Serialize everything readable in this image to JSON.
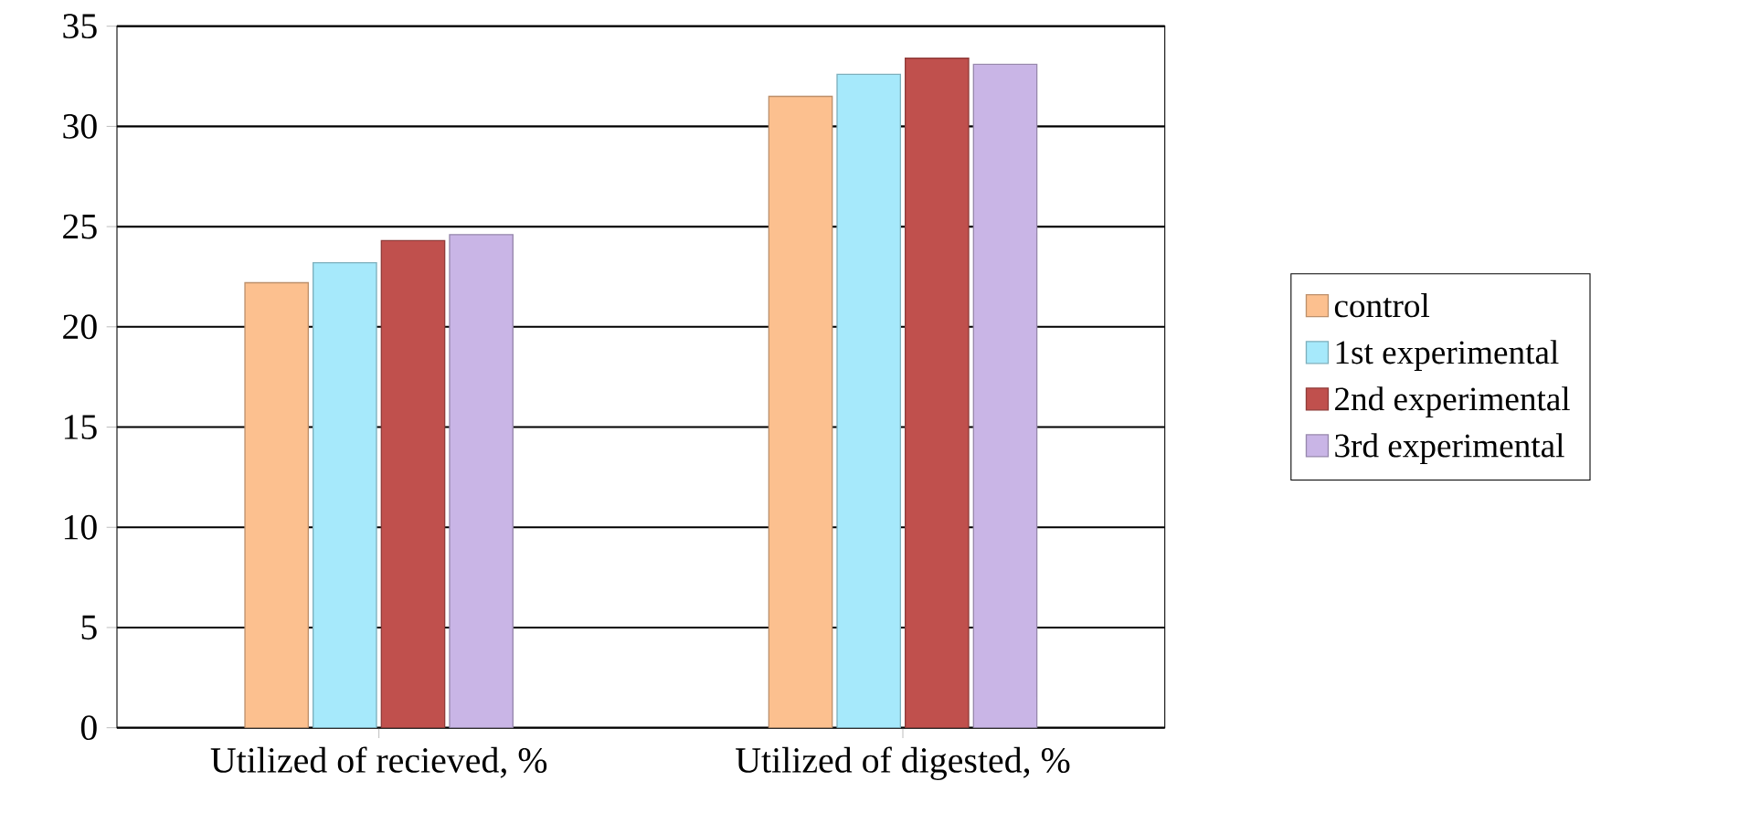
{
  "chart_data": {
    "type": "bar",
    "categories": [
      "Utilized of recieved, %",
      "Utilized of digested, %"
    ],
    "series": [
      {
        "name": "control",
        "color": "#fcc08f",
        "values": [
          22.2,
          31.5
        ]
      },
      {
        "name": "1st experimental",
        "color": "#a6e9fb",
        "values": [
          23.2,
          32.6
        ]
      },
      {
        "name": "2nd experimental",
        "color": "#c0504d",
        "values": [
          24.3,
          33.4
        ]
      },
      {
        "name": "3rd experimental",
        "color": "#c9b5e6",
        "values": [
          24.6,
          33.1
        ]
      }
    ],
    "ylim": [
      0,
      35
    ],
    "yticks": [
      0,
      5,
      10,
      15,
      20,
      25,
      30,
      35
    ],
    "grid": "y",
    "legend": "right"
  }
}
